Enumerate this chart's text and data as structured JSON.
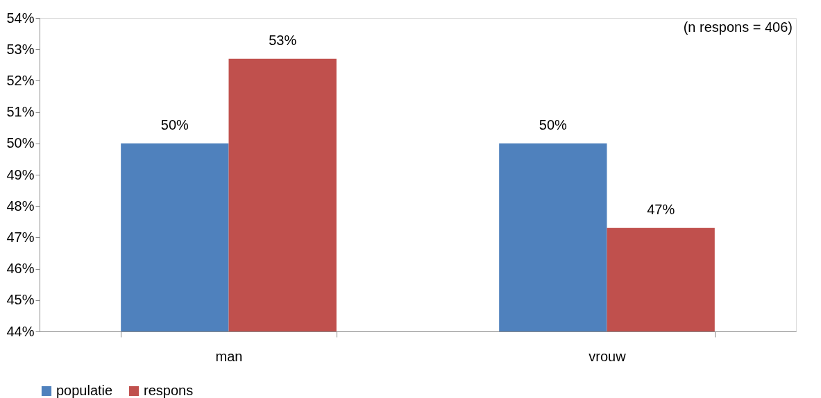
{
  "chart_data": {
    "type": "bar",
    "categories": [
      "man",
      "vrouw"
    ],
    "series": [
      {
        "name": "populatie",
        "color": "#4f81bd",
        "values": [
          50.0,
          50.0
        ],
        "value_labels": [
          "50%",
          "50%"
        ]
      },
      {
        "name": "respons",
        "color": "#c0504d",
        "values": [
          52.7,
          47.3
        ],
        "value_labels": [
          "53%",
          "47%"
        ]
      }
    ],
    "ylim": [
      44,
      54
    ],
    "yticks": [
      {
        "value": 44,
        "label": "44%"
      },
      {
        "value": 45,
        "label": "45%"
      },
      {
        "value": 46,
        "label": "46%"
      },
      {
        "value": 47,
        "label": "47%"
      },
      {
        "value": 48,
        "label": "48%"
      },
      {
        "value": 49,
        "label": "49%"
      },
      {
        "value": 50,
        "label": "50%"
      },
      {
        "value": 51,
        "label": "51%"
      },
      {
        "value": 52,
        "label": "52%"
      },
      {
        "value": 53,
        "label": "53%"
      },
      {
        "value": 54,
        "label": "54%"
      }
    ],
    "annotations": [
      "(n respons = 406)"
    ],
    "grid": false,
    "legend": "bottom"
  }
}
